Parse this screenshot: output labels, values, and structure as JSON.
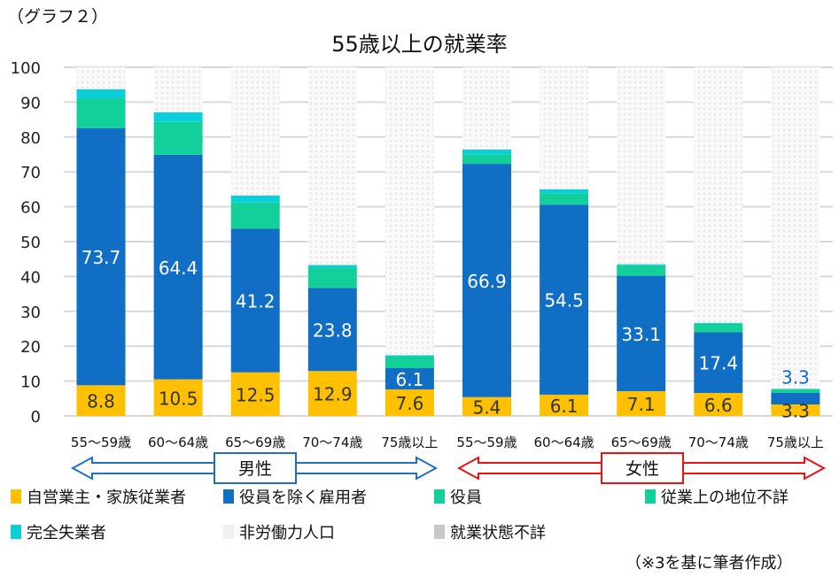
{
  "header": {
    "note": "（グラフ２）",
    "source": "（※3を基に筆者作成）"
  },
  "chart_data": {
    "type": "bar",
    "stacked": true,
    "title": "55歳以上の就業率",
    "xlabel": "",
    "ylabel": "",
    "ylim": [
      0,
      100
    ],
    "yticks": [
      0,
      10,
      20,
      30,
      40,
      50,
      60,
      70,
      80,
      90,
      100
    ],
    "grid": true,
    "legend_position": "bottom",
    "categories": [
      "55～59歳",
      "60～64歳",
      "65～69歳",
      "70～74歳",
      "75歳以上",
      "55～59歳",
      "60～64歳",
      "65～69歳",
      "70～74歳",
      "75歳以上"
    ],
    "groups": [
      {
        "label": "男性",
        "color": "#1f6fc5"
      },
      {
        "label": "女性",
        "color": "#ee1111"
      }
    ],
    "series": [
      {
        "name": "自営業主・家族従業者",
        "color": "#ffc000",
        "values": [
          8.8,
          10.5,
          12.5,
          12.9,
          7.6,
          5.4,
          6.1,
          7.1,
          6.6,
          3.3
        ],
        "labels": [
          "8.8",
          "10.5",
          "12.5",
          "12.9",
          "7.6",
          "5.4",
          "6.1",
          "7.1",
          "6.6",
          "3.3"
        ]
      },
      {
        "name": "役員を除く雇用者",
        "color": "#106ec5",
        "values": [
          73.7,
          64.4,
          41.2,
          23.8,
          6.1,
          66.9,
          54.5,
          33.1,
          17.4,
          3.3
        ],
        "labels": [
          "73.7",
          "64.4",
          "41.2",
          "23.8",
          "6.1",
          "66.9",
          "54.5",
          "33.1",
          "17.4",
          "3.3"
        ]
      },
      {
        "name": "役員",
        "color": "#13d09a",
        "values": [
          8.6,
          9.4,
          7.5,
          5.8,
          3.3,
          2.6,
          3.2,
          3.0,
          2.5,
          1.0
        ]
      },
      {
        "name": "従業上の地位不詳",
        "color": "#13d09a",
        "values": [
          0,
          0,
          0,
          0,
          0,
          0,
          0,
          0,
          0,
          0
        ]
      },
      {
        "name": "完全失業者",
        "color": "#0bcfd8",
        "values": [
          2.6,
          2.8,
          2.0,
          0.8,
          0.4,
          1.5,
          1.2,
          0.3,
          0.2,
          0.2
        ]
      },
      {
        "name": "非労働力人口",
        "color": "#f2f2f2",
        "pattern": "light-dots",
        "values": [
          6.3,
          12.9,
          36.8,
          56.7,
          82.6,
          23.6,
          35.0,
          56.5,
          73.3,
          92.2
        ]
      },
      {
        "name": "就業状態不詳",
        "color": "#bfbfbf",
        "pattern": "dark-dots",
        "values": [
          0,
          0,
          0,
          0,
          0,
          0,
          0,
          0,
          0,
          0
        ]
      }
    ]
  }
}
